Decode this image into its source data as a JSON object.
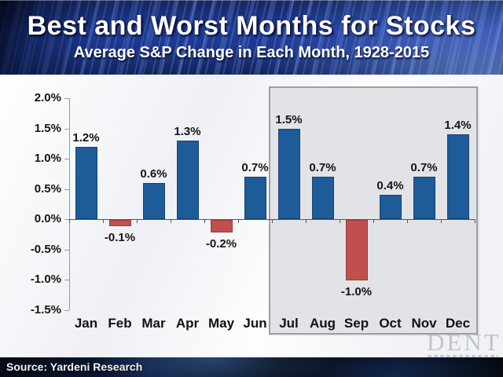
{
  "header": {
    "title": "Best and Worst Months for Stocks",
    "subtitle": "Average S&P Change in Each Month, 1928-2015"
  },
  "chart_data": {
    "type": "bar",
    "title": "Best and Worst Months for Stocks",
    "subtitle": "Average S&P Change in Each Month, 1928-2015",
    "categories": [
      "Jan",
      "Feb",
      "Mar",
      "Apr",
      "May",
      "Jun",
      "Jul",
      "Aug",
      "Sep",
      "Oct",
      "Nov",
      "Dec"
    ],
    "values": [
      1.2,
      -0.1,
      0.6,
      1.3,
      -0.2,
      0.7,
      1.5,
      0.7,
      -1.0,
      0.4,
      0.7,
      1.4
    ],
    "bar_labels": [
      "1.2%",
      "-0.1%",
      "0.6%",
      "1.3%",
      "-0.2%",
      "0.7%",
      "1.5%",
      "0.7%",
      "-1.0%",
      "0.4%",
      "0.7%",
      "1.4%"
    ],
    "ylabel": "",
    "xlabel": "",
    "ylim": [
      -1.5,
      2.0
    ],
    "yticks": [
      "2.0%",
      "1.5%",
      "1.0%",
      "0.5%",
      "0.0%",
      "-0.5%",
      "-1.0%",
      "-1.5%"
    ],
    "grid": false,
    "legend": "none",
    "positive_color": "#1e5b99",
    "negative_color": "#c0504d",
    "highlight_box": {
      "from": "Jul",
      "to": "Dec"
    }
  },
  "footer": {
    "source": "Source: Yardeni Research"
  },
  "watermark": {
    "text": "DENT"
  }
}
